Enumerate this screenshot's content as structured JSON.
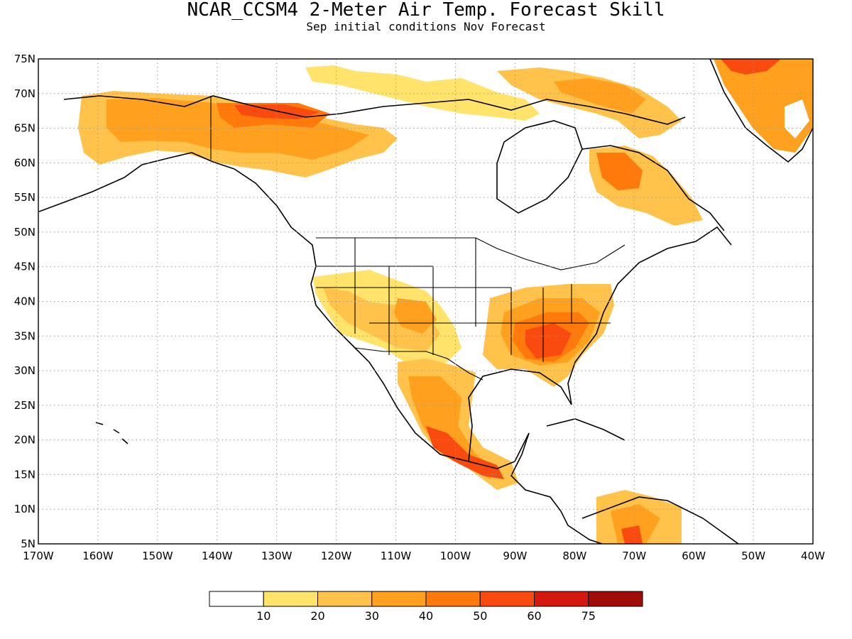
{
  "map": {
    "title": "NCAR_CCSM4 2-Meter Air Temp. Forecast Skill",
    "subtitle": "Sep initial conditions  Nov Forecast",
    "lat_ticks": [
      "75N",
      "70N",
      "65N",
      "60N",
      "55N",
      "50N",
      "45N",
      "40N",
      "35N",
      "30N",
      "25N",
      "20N",
      "15N",
      "10N",
      "5N"
    ],
    "lon_ticks": [
      "170W",
      "160W",
      "150W",
      "140W",
      "130W",
      "120W",
      "110W",
      "100W",
      "90W",
      "80W",
      "70W",
      "60W",
      "50W",
      "40W"
    ],
    "extent": {
      "lon": [
        -170,
        -40
      ],
      "lat": [
        5,
        75
      ]
    },
    "grid": "dotted"
  },
  "legend": {
    "labels": [
      "10",
      "20",
      "30",
      "40",
      "50",
      "60",
      "75"
    ],
    "colors": [
      "#ffffff",
      "#ffe36b",
      "#ffc24a",
      "#ffa01e",
      "#ff7a0a",
      "#f94a10",
      "#d41810",
      "#a00c08"
    ]
  },
  "colors": {
    "c10": "#ffe36b",
    "c20": "#ffc24a",
    "c30": "#ffa01e",
    "c40": "#ff7a0a",
    "c50": "#f94a10",
    "c60": "#d41810"
  }
}
